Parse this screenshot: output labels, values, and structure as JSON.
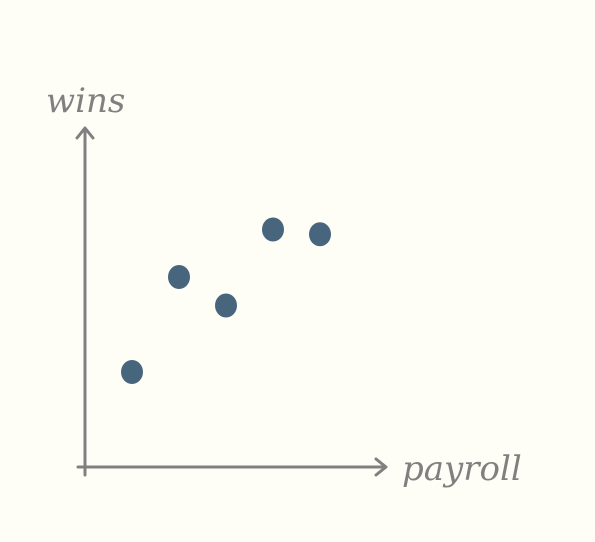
{
  "chart_data": {
    "type": "scatter",
    "xlabel": "payroll",
    "ylabel": "wins",
    "points": [
      {
        "x": 1,
        "y": 2
      },
      {
        "x": 2,
        "y": 4
      },
      {
        "x": 3,
        "y": 3.4
      },
      {
        "x": 4,
        "y": 5
      },
      {
        "x": 5,
        "y": 4.9
      }
    ],
    "xlim": [
      0,
      6.5
    ],
    "ylim": [
      0,
      6.5
    ],
    "grid": false,
    "ticks": false
  },
  "colors": {
    "background": "#fefef6",
    "axis": "#808080",
    "point": "#47657d",
    "label": "#808080"
  }
}
